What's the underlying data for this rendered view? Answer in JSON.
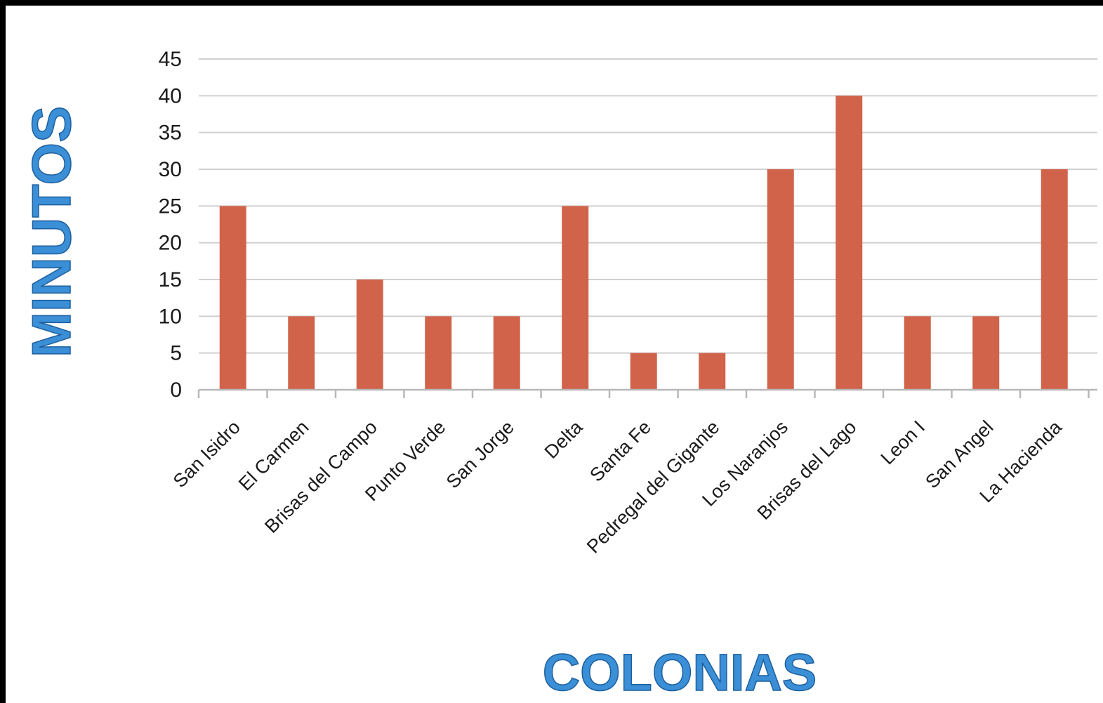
{
  "chart_data": {
    "type": "bar",
    "categories": [
      "San Isidro",
      "El Carmen",
      "Brisas del Campo",
      "Punto Verde",
      "San Jorge",
      "Delta",
      "Santa Fe",
      "Pedregal del Gigante",
      "Los Naranjos",
      "Brisas del Lago",
      "Leon I",
      "San Angel",
      "La Hacienda"
    ],
    "values": [
      25,
      10,
      15,
      10,
      10,
      25,
      5,
      5,
      30,
      40,
      10,
      10,
      30
    ],
    "xlabel": "COLONIAS",
    "ylabel": "MINUTOS",
    "ylim": [
      0,
      45
    ],
    "yticks": [
      0,
      5,
      10,
      15,
      20,
      25,
      30,
      35,
      40,
      45
    ],
    "grid": true,
    "legend": "none",
    "colors": {
      "bar": "#d1634a",
      "grid": "#d0d0d0",
      "axis_title": "#3a8fd6"
    }
  }
}
